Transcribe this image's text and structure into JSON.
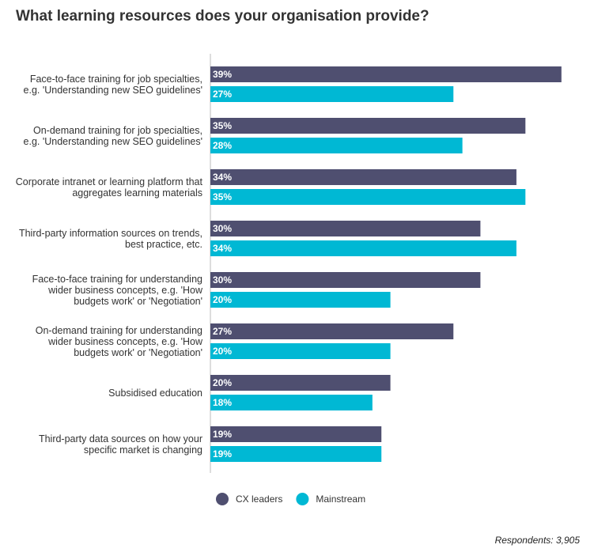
{
  "chart_data": {
    "type": "bar",
    "orientation": "horizontal",
    "title": "What learning resources does your organisation provide?",
    "categories": [
      "Face-to-face training for job specialties, e.g. 'Understanding new SEO guidelines'",
      "On-demand training for job specialties, e.g. 'Understanding new SEO guidelines'",
      "Corporate intranet or learning platform that aggregates learning materials",
      "Third-party information sources on trends, best practice, etc.",
      "Face-to-face training for understanding wider business concepts, e.g. 'How budgets work' or 'Negotiation'",
      "On-demand training for understanding wider business concepts, e.g. 'How budgets work' or 'Negotiation'",
      "Subsidised education",
      "Third-party data sources on how your specific market is changing"
    ],
    "series": [
      {
        "name": "CX leaders",
        "color": "#4f4f70",
        "values": [
          39,
          35,
          34,
          30,
          30,
          27,
          20,
          19
        ],
        "value_labels": [
          "39%",
          "35%",
          "34%",
          "30%",
          "30%",
          "27%",
          "20%",
          "19%"
        ]
      },
      {
        "name": "Mainstream",
        "color": "#00b8d4",
        "values": [
          27,
          28,
          35,
          34,
          20,
          20,
          18,
          19
        ],
        "value_labels": [
          "27%",
          "28%",
          "35%",
          "34%",
          "20%",
          "20%",
          "18%",
          "19%"
        ]
      }
    ],
    "footnote": "Respondents: 3,905"
  }
}
